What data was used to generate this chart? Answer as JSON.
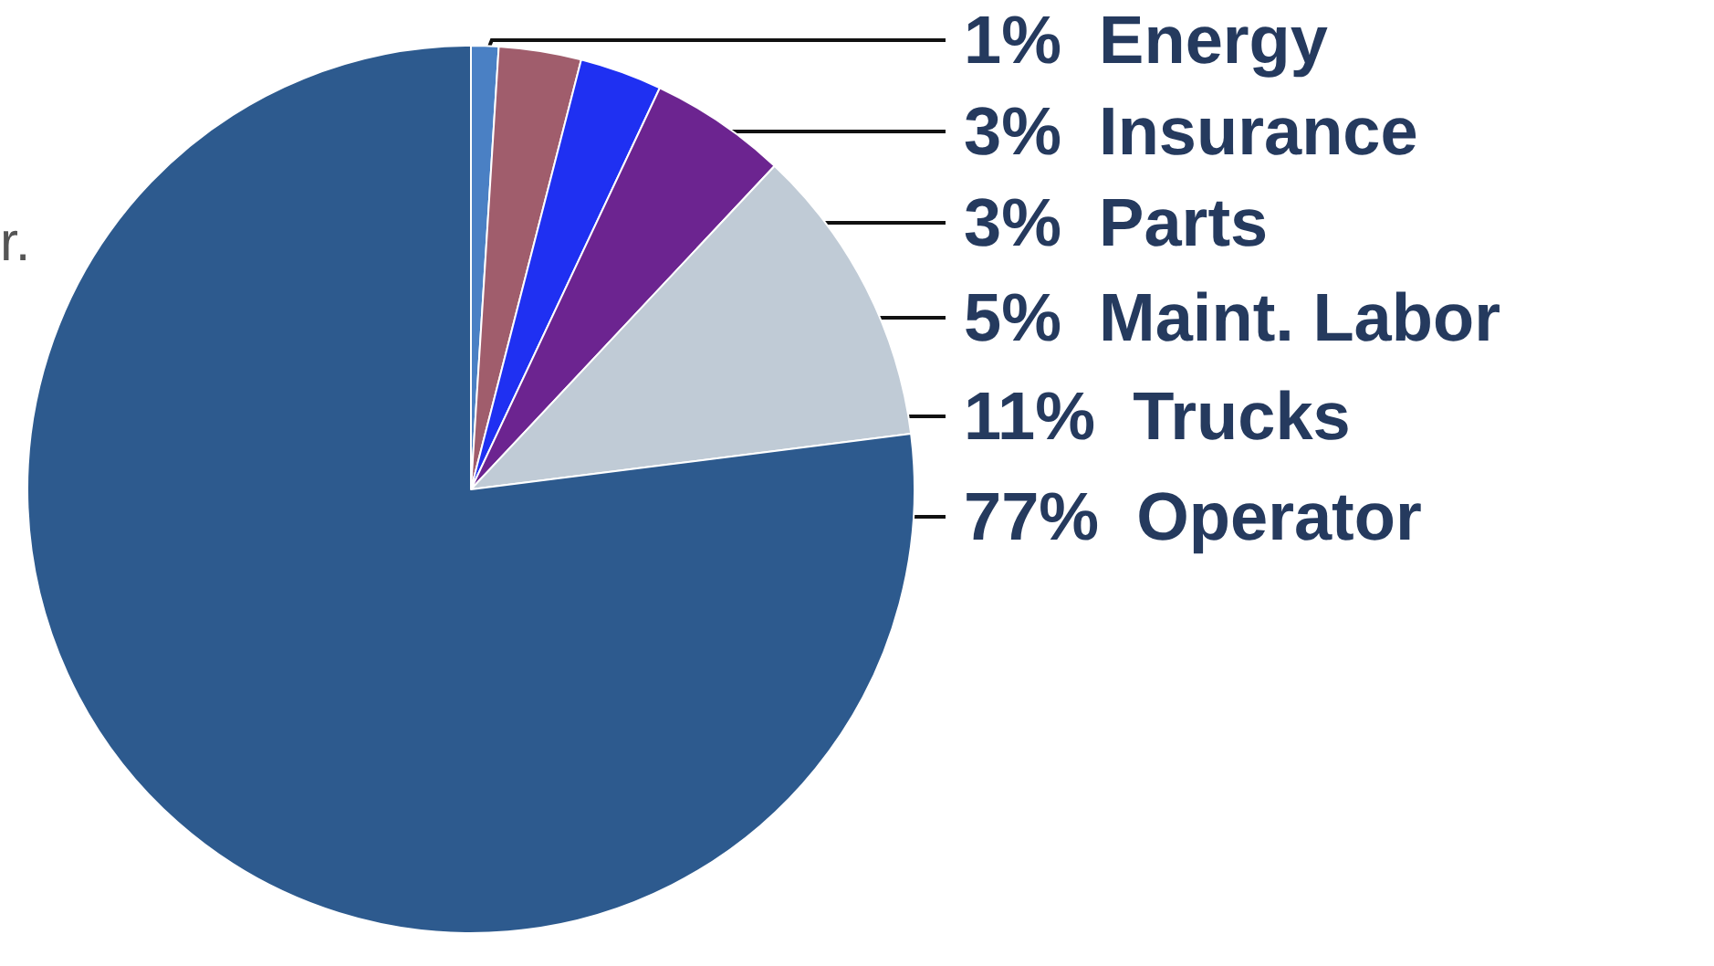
{
  "chart_data": {
    "type": "pie",
    "categories": [
      "Energy",
      "Insurance",
      "Parts",
      "Maint. Labor",
      "Trucks",
      "Operator"
    ],
    "values": [
      1,
      3,
      3,
      5,
      11,
      77
    ],
    "value_labels": [
      "1%",
      "3%",
      "3%",
      "5%",
      "11%",
      "77%"
    ],
    "colors": [
      "#4a80c4",
      "#a05d6c",
      "#1f30f2",
      "#6c2490",
      "#c0cbd6",
      "#2d5a8e"
    ],
    "annotations": [
      "r."
    ]
  }
}
